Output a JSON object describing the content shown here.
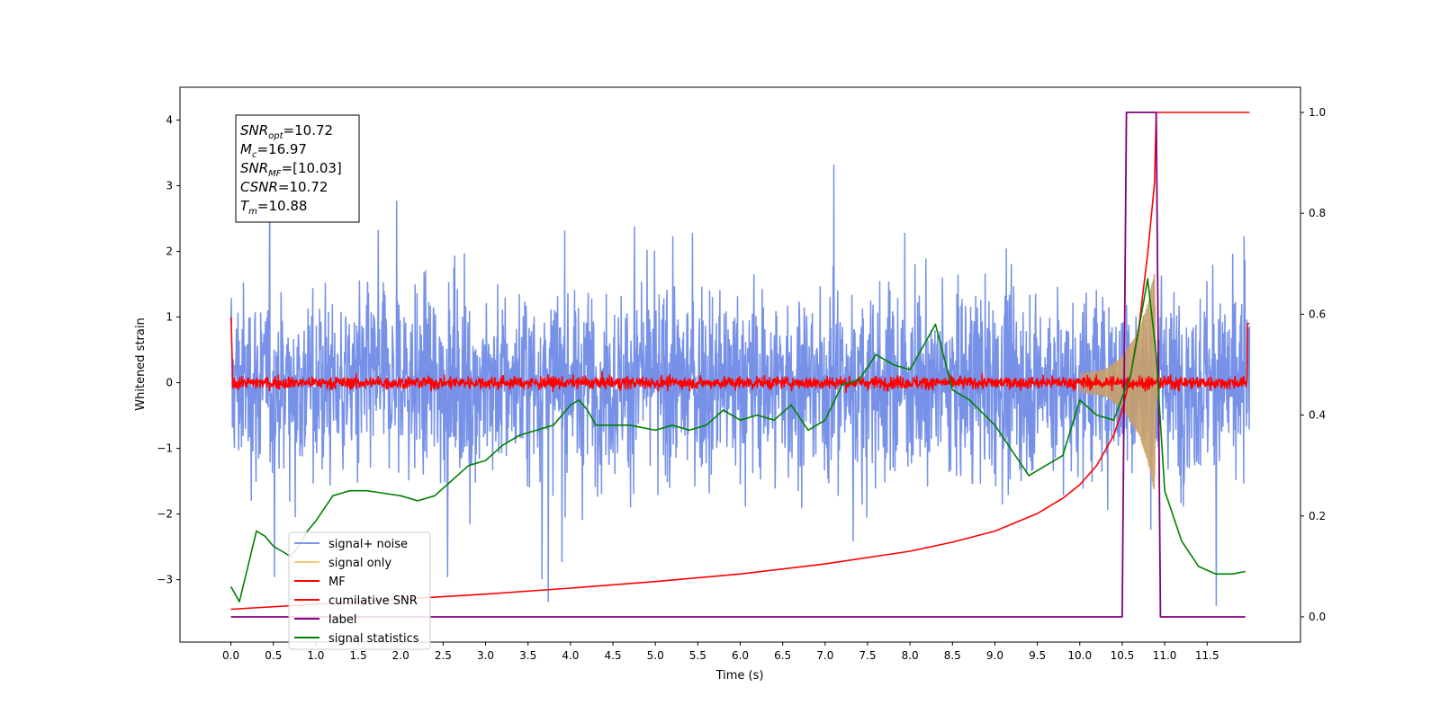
{
  "chart_data": {
    "type": "line",
    "xlabel": "Time (s)",
    "ylabel": "Whitened strain",
    "xlim": [
      -0.6,
      12.6
    ],
    "ylim": [
      -3.95,
      4.5
    ],
    "y2lim": [
      -0.05,
      1.05
    ],
    "x_ticks": [
      "0.0",
      "0.5",
      "1.0",
      "1.5",
      "2.0",
      "2.5",
      "3.0",
      "3.5",
      "4.0",
      "4.5",
      "5.0",
      "5.5",
      "6.0",
      "6.5",
      "7.0",
      "7.5",
      "8.0",
      "8.5",
      "9.0",
      "9.5",
      "10.0",
      "10.5",
      "11.0",
      "11.5"
    ],
    "x_tick_values": [
      0,
      0.5,
      1,
      1.5,
      2,
      2.5,
      3,
      3.5,
      4,
      4.5,
      5,
      5.5,
      6,
      6.5,
      7,
      7.5,
      8,
      8.5,
      9,
      9.5,
      10,
      10.5,
      11,
      11.5
    ],
    "y_ticks": [
      "−3",
      "−2",
      "−1",
      "0",
      "1",
      "2",
      "3",
      "4"
    ],
    "y_tick_values": [
      -3,
      -2,
      -1,
      0,
      1,
      2,
      3,
      4
    ],
    "y2_ticks": [
      "0.0",
      "0.2",
      "0.4",
      "0.6",
      "0.8",
      "1.0"
    ],
    "y2_tick_values": [
      0,
      0.2,
      0.4,
      0.6,
      0.8,
      1.0
    ],
    "annotation": {
      "lines": [
        {
          "sym": "SNR",
          "sub": "opt",
          "val": "=10.72"
        },
        {
          "sym": "M",
          "sub": "c",
          "val": "=16.97"
        },
        {
          "sym": "SNR",
          "sub": "MF",
          "val": "=[10.03]"
        },
        {
          "sym": "CSNR",
          "sub": "",
          "val": "=10.72"
        },
        {
          "sym": "T",
          "sub": "m",
          "val": "=10.88"
        }
      ]
    },
    "legend": {
      "placement": "lower-left",
      "entries": [
        {
          "name": "signal+ noise",
          "color": "#7b96e6"
        },
        {
          "name": "signal only",
          "color": "#f5c97a"
        },
        {
          "name": "MF",
          "color": "#ff0000"
        },
        {
          "name": "cumilative SNR",
          "color": "#ff0000"
        },
        {
          "name": "label",
          "color": "#800080"
        },
        {
          "name": "signal statistics",
          "color": "#008000"
        }
      ]
    },
    "colors": {
      "noise": "#6f8be6",
      "signal": "#c9a06a",
      "mf": "#ff0000",
      "csnr": "#ff0000",
      "label": "#800080",
      "stats": "#008000"
    },
    "series": [
      {
        "name": "signal+ noise",
        "axis": "left",
        "description_range": [
          -3.4,
          4.17
        ],
        "x_range": [
          0,
          12.0
        ]
      },
      {
        "name": "signal only",
        "axis": "left",
        "envelope": [
          [
            10.0,
            0.15
          ],
          [
            10.3,
            0.2
          ],
          [
            10.5,
            0.4
          ],
          [
            10.7,
            0.8
          ],
          [
            10.8,
            1.2
          ],
          [
            10.88,
            1.7
          ],
          [
            10.9,
            0.3
          ],
          [
            10.95,
            0.05
          ]
        ]
      },
      {
        "name": "MF",
        "axis": "left",
        "amplitude": 0.15,
        "x_range": [
          0,
          12.0
        ]
      },
      {
        "name": "cumilative SNR",
        "axis": "right",
        "x": [
          0,
          1,
          2,
          3,
          4,
          5,
          6,
          7,
          8,
          8.5,
          9,
          9.5,
          9.8,
          10.0,
          10.2,
          10.4,
          10.5,
          10.6,
          10.7,
          10.8,
          10.88,
          10.9,
          12.0
        ],
        "y": [
          0.015,
          0.025,
          0.035,
          0.045,
          0.057,
          0.07,
          0.085,
          0.105,
          0.13,
          0.148,
          0.17,
          0.205,
          0.235,
          0.262,
          0.3,
          0.36,
          0.41,
          0.48,
          0.58,
          0.72,
          0.86,
          1.0,
          1.0
        ]
      },
      {
        "name": "label",
        "axis": "right",
        "x": [
          0,
          10.5,
          10.55,
          10.9,
          10.95,
          11.95
        ],
        "y": [
          0,
          0,
          1,
          1,
          0,
          0
        ]
      },
      {
        "name": "signal statistics",
        "axis": "right",
        "x": [
          0,
          0.1,
          0.2,
          0.3,
          0.4,
          0.5,
          0.6,
          0.7,
          0.8,
          0.9,
          1.0,
          1.2,
          1.4,
          1.6,
          1.8,
          2.0,
          2.2,
          2.4,
          2.6,
          2.8,
          3.0,
          3.2,
          3.4,
          3.6,
          3.8,
          4.0,
          4.1,
          4.2,
          4.3,
          4.5,
          4.7,
          5.0,
          5.2,
          5.4,
          5.6,
          5.8,
          6.0,
          6.2,
          6.4,
          6.6,
          6.8,
          7.0,
          7.2,
          7.4,
          7.6,
          7.8,
          8.0,
          8.2,
          8.3,
          8.5,
          8.7,
          9.0,
          9.2,
          9.4,
          9.6,
          9.8,
          10.0,
          10.2,
          10.4,
          10.6,
          10.8,
          10.9,
          11.0,
          11.2,
          11.4,
          11.6,
          11.8,
          11.95
        ],
        "y": [
          0.06,
          0.03,
          0.1,
          0.17,
          0.16,
          0.14,
          0.13,
          0.12,
          0.14,
          0.17,
          0.19,
          0.24,
          0.25,
          0.25,
          0.245,
          0.24,
          0.23,
          0.24,
          0.27,
          0.3,
          0.31,
          0.34,
          0.36,
          0.37,
          0.38,
          0.42,
          0.43,
          0.41,
          0.38,
          0.38,
          0.38,
          0.37,
          0.38,
          0.37,
          0.38,
          0.41,
          0.39,
          0.4,
          0.39,
          0.42,
          0.37,
          0.39,
          0.46,
          0.47,
          0.52,
          0.5,
          0.49,
          0.55,
          0.58,
          0.45,
          0.43,
          0.38,
          0.33,
          0.28,
          0.3,
          0.32,
          0.43,
          0.4,
          0.39,
          0.48,
          0.67,
          0.52,
          0.25,
          0.15,
          0.1,
          0.085,
          0.085,
          0.09
        ]
      }
    ]
  }
}
